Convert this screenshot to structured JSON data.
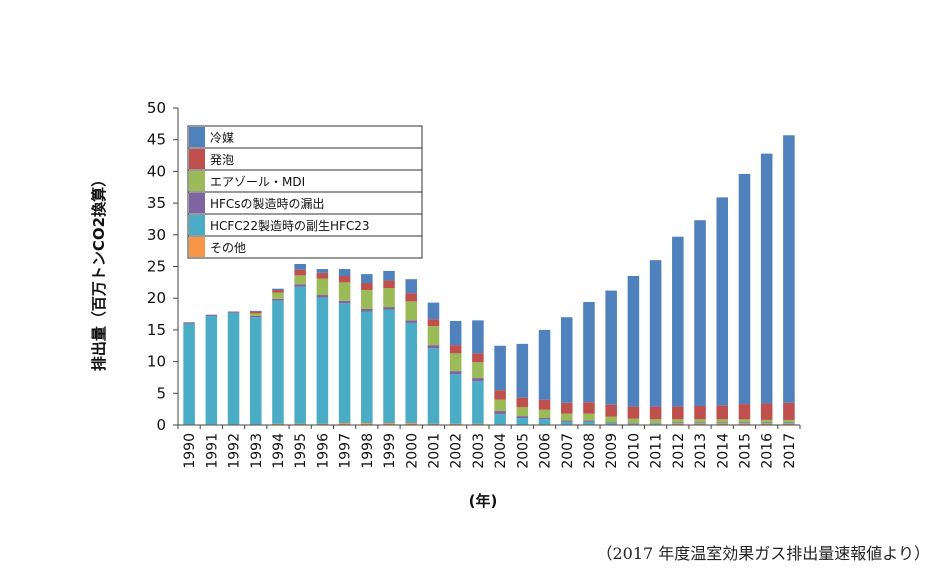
{
  "chart_data": {
    "type": "bar",
    "stacked": true,
    "title": "",
    "xlabel": "(年)",
    "ylabel": "排出量（百万トンCO2換算）",
    "ylim": [
      0,
      50
    ],
    "yticks": [
      0,
      5,
      10,
      15,
      20,
      25,
      30,
      35,
      40,
      45,
      50
    ],
    "grid": false,
    "legend_position": "top-left",
    "categories": [
      "1990",
      "1991",
      "1992",
      "1993",
      "1994",
      "1995",
      "1996",
      "1997",
      "1998",
      "1999",
      "2000",
      "2001",
      "2002",
      "2003",
      "2004",
      "2005",
      "2006",
      "2007",
      "2008",
      "2009",
      "2010",
      "2011",
      "2012",
      "2013",
      "2014",
      "2015",
      "2016",
      "2017"
    ],
    "series": [
      {
        "name": "その他",
        "color": "#f79646",
        "values": [
          0.1,
          0.1,
          0.1,
          0.1,
          0.2,
          0.2,
          0.2,
          0.3,
          0.3,
          0.3,
          0.3,
          0.2,
          0.2,
          0.2,
          0.1,
          0.1,
          0.1,
          0.1,
          0.1,
          0.1,
          0.1,
          0.1,
          0.2,
          0.2,
          0.2,
          0.2,
          0.2,
          0.2
        ]
      },
      {
        "name": "HCFC22製造時の副生HFC23",
        "color": "#4bacc6",
        "values": [
          15.9,
          17.1,
          17.6,
          16.9,
          19.4,
          21.6,
          19.9,
          18.9,
          17.6,
          17.9,
          15.8,
          11.9,
          7.8,
          6.7,
          1.6,
          1.0,
          0.8,
          0.4,
          0.4,
          0.2,
          0.1,
          0.1,
          0.1,
          0.1,
          0.1,
          0.1,
          0.1,
          0.1
        ]
      },
      {
        "name": "HFCsの製造時の漏出",
        "color": "#8064a2",
        "values": [
          0.2,
          0.2,
          0.2,
          0.2,
          0.3,
          0.4,
          0.4,
          0.4,
          0.4,
          0.4,
          0.4,
          0.5,
          0.5,
          0.5,
          0.5,
          0.3,
          0.2,
          0.2,
          0.2,
          0.1,
          0.1,
          0.1,
          0.1,
          0.1,
          0.1,
          0.1,
          0.1,
          0.1
        ]
      },
      {
        "name": "エアゾール・MDI",
        "color": "#9bbb59",
        "values": [
          0,
          0,
          0,
          0.4,
          1.0,
          1.4,
          2.6,
          2.9,
          3.0,
          3.0,
          3.0,
          3.0,
          2.8,
          2.5,
          1.8,
          1.4,
          1.3,
          1.1,
          1.1,
          0.9,
          0.7,
          0.6,
          0.5,
          0.5,
          0.5,
          0.5,
          0.4,
          0.4
        ]
      },
      {
        "name": "発泡",
        "color": "#c0504d",
        "values": [
          0,
          0,
          0,
          0.3,
          0.4,
          0.9,
          0.9,
          1.0,
          1.1,
          1.2,
          1.3,
          1.1,
          1.3,
          1.4,
          1.5,
          1.5,
          1.6,
          1.7,
          1.8,
          1.9,
          1.9,
          2.0,
          2.0,
          2.1,
          2.2,
          2.4,
          2.6,
          2.7
        ]
      },
      {
        "name": "冷媒",
        "color": "#4f81bd",
        "values": [
          0,
          0,
          0,
          0.1,
          0.2,
          0.9,
          0.6,
          1.1,
          1.4,
          1.5,
          2.2,
          2.6,
          3.8,
          5.2,
          7.0,
          8.5,
          11.0,
          13.5,
          15.8,
          18.0,
          20.6,
          23.1,
          26.8,
          29.3,
          32.8,
          36.3,
          39.4,
          42.2
        ]
      }
    ]
  },
  "source_note": "（2017 年度温室効果ガス排出量速報値より）"
}
